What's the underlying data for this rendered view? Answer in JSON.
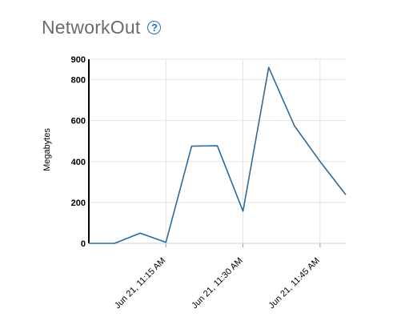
{
  "header": {
    "title": "NetworkOut",
    "help_glyph": "?"
  },
  "chart_data": {
    "type": "line",
    "title": "NetworkOut",
    "ylabel": "Megabytes",
    "xlabel": "",
    "ylim": [
      0,
      900
    ],
    "y_ticks": [
      0,
      200,
      400,
      600,
      800,
      900
    ],
    "x_ticks": [
      "Jun 21, 11:15 AM",
      "Jun 21, 11:30 AM",
      "Jun 21, 11:45 AM"
    ],
    "x": [
      "Jun 21, 11:00 AM",
      "Jun 21, 11:05 AM",
      "Jun 21, 11:10 AM",
      "Jun 21, 11:15 AM",
      "Jun 21, 11:20 AM",
      "Jun 21, 11:25 AM",
      "Jun 21, 11:30 AM",
      "Jun 21, 11:35 AM",
      "Jun 21, 11:40 AM",
      "Jun 21, 11:45 AM",
      "Jun 21, 11:50 AM"
    ],
    "series": [
      {
        "values": [
          0,
          0,
          50,
          5,
          475,
          477,
          157,
          860,
          575,
          400,
          238
        ],
        "color": "#2d6a9a"
      }
    ],
    "grid": true
  }
}
